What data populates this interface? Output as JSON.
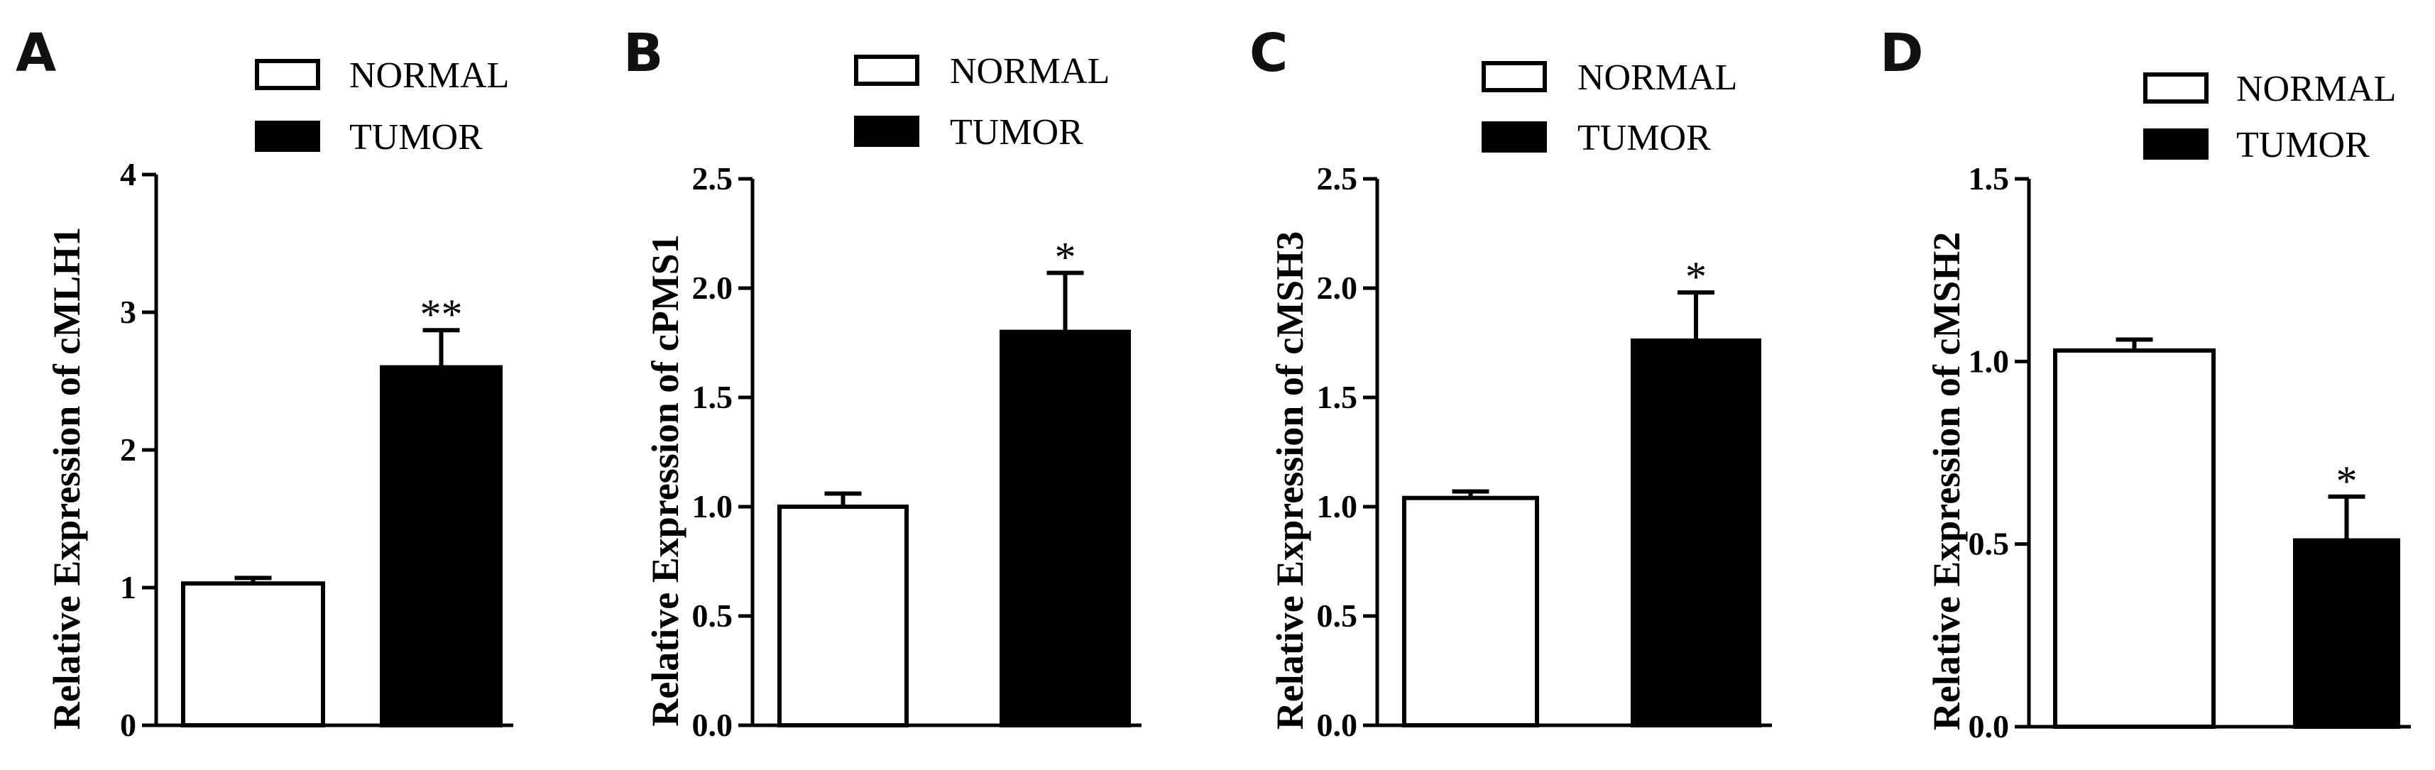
{
  "chart_data": [
    {
      "type": "bar",
      "panel": "A",
      "categories": [
        "NORMAL",
        "TUMOR"
      ],
      "values": [
        1.03,
        2.6
      ],
      "errors": [
        0.04,
        0.27
      ],
      "significance": "**",
      "ylabel": "Relative Expression of cMLH1",
      "ylim": [
        0,
        4
      ],
      "yticks": [
        "0",
        "1",
        "2",
        "3",
        "4"
      ],
      "legend": [
        "NORMAL",
        "TUMOR"
      ],
      "colors": [
        "#ffffff",
        "#000000"
      ]
    },
    {
      "type": "bar",
      "panel": "B",
      "categories": [
        "NORMAL",
        "TUMOR"
      ],
      "values": [
        1.0,
        1.8
      ],
      "errors": [
        0.06,
        0.27
      ],
      "significance": "*",
      "ylabel": "Relative Expression of cPMS1",
      "ylim": [
        0,
        2.5
      ],
      "yticks": [
        "0.0",
        "0.5",
        "1.0",
        "1.5",
        "2.0",
        "2.5"
      ],
      "legend": [
        "NORMAL",
        "TUMOR"
      ],
      "colors": [
        "#ffffff",
        "#000000"
      ]
    },
    {
      "type": "bar",
      "panel": "C",
      "categories": [
        "NORMAL",
        "TUMOR"
      ],
      "values": [
        1.04,
        1.76
      ],
      "errors": [
        0.03,
        0.22
      ],
      "significance": "*",
      "ylabel": "Relative Expression of cMSH3",
      "ylim": [
        0,
        2.5
      ],
      "yticks": [
        "0.0",
        "0.5",
        "1.0",
        "1.5",
        "2.0",
        "2.5"
      ],
      "legend": [
        "NORMAL",
        "TUMOR"
      ],
      "colors": [
        "#ffffff",
        "#000000"
      ]
    },
    {
      "type": "bar",
      "panel": "D",
      "categories": [
        "NORMAL",
        "TUMOR"
      ],
      "values": [
        1.03,
        0.51
      ],
      "errors": [
        0.03,
        0.12
      ],
      "significance": "*",
      "ylabel": "Relative Expression of cMSH2",
      "ylim": [
        0,
        1.5
      ],
      "yticks": [
        "0.0",
        "0.5",
        "1.0",
        "1.5"
      ],
      "legend": [
        "NORMAL",
        "TUMOR"
      ],
      "colors": [
        "#ffffff",
        "#000000"
      ]
    }
  ]
}
